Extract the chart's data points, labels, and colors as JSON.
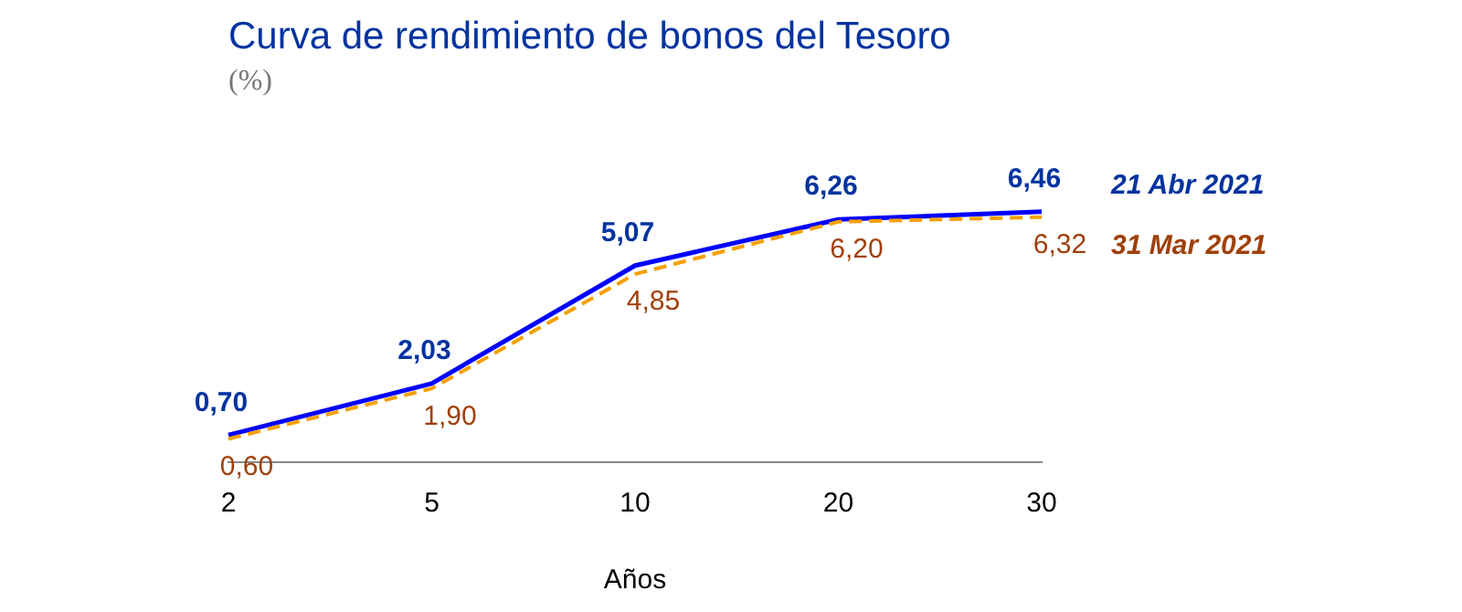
{
  "chart_data": {
    "type": "line",
    "title": "Curva de rendimiento de bonos del Tesoro",
    "subtitle": "(%)",
    "xlabel": "Años",
    "categories": [
      "2",
      "5",
      "10",
      "20",
      "30"
    ],
    "series": [
      {
        "name": "21 Abr 2021",
        "color": "#0000ff",
        "values": [
          0.7,
          2.03,
          5.07,
          6.26,
          6.46
        ],
        "value_labels": [
          "0,70",
          "2,03",
          "5,07",
          "6,26",
          "6,46"
        ],
        "line_style": "solid"
      },
      {
        "name": "31 Mar 2021",
        "color": "#f5a000",
        "values": [
          0.6,
          1.9,
          4.85,
          6.2,
          6.32
        ],
        "value_labels": [
          "0,60",
          "1,90",
          "4,85",
          "6,20",
          "6,32"
        ],
        "line_style": "dashed"
      }
    ],
    "grid": false,
    "legend": false,
    "marker": "none"
  }
}
